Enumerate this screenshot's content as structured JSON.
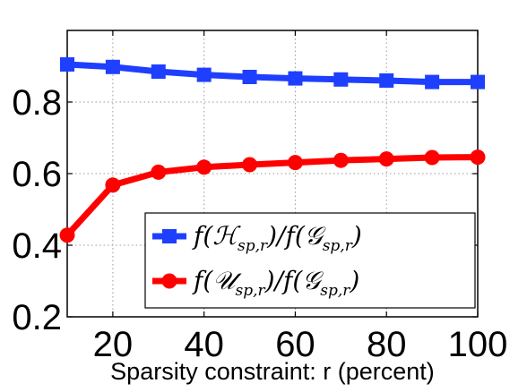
{
  "chart_data": {
    "type": "line",
    "title": "",
    "xlabel": "Sparsity constraint:  r (percent)",
    "ylabel": "",
    "xlim": [
      10,
      100
    ],
    "ylim": [
      0.2,
      1.0
    ],
    "x": [
      10,
      20,
      30,
      40,
      50,
      60,
      70,
      80,
      90,
      100
    ],
    "x_ticks": [
      20,
      40,
      60,
      80,
      100
    ],
    "x_tick_labels": [
      "20",
      "40",
      "60",
      "80",
      "100"
    ],
    "y_ticks": [
      0.2,
      0.4,
      0.6,
      0.8
    ],
    "y_tick_labels": [
      "0.2",
      "0.4",
      "0.6",
      "0.8"
    ],
    "grid": true,
    "legend_position": "bottom-right",
    "series": [
      {
        "name": "f(ℋsp,r)/f(𝒢sp,r)",
        "color": "#1f3fff",
        "marker": "square",
        "values": [
          0.905,
          0.898,
          0.885,
          0.876,
          0.87,
          0.866,
          0.863,
          0.86,
          0.856,
          0.856
        ]
      },
      {
        "name": "f(𝒰sp,r)/f(𝒢sp,r)",
        "color": "#ff0000",
        "marker": "circle",
        "values": [
          0.428,
          0.568,
          0.604,
          0.618,
          0.625,
          0.631,
          0.637,
          0.641,
          0.645,
          0.646
        ]
      }
    ]
  }
}
